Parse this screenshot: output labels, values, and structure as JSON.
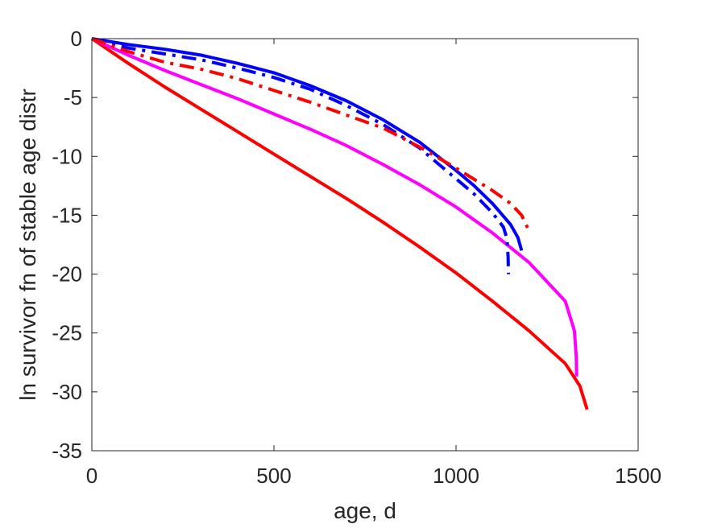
{
  "chart_data": {
    "type": "line",
    "title": "",
    "xlabel": "age, d",
    "ylabel": "ln survivor fn of stable age distr",
    "xlim": [
      0,
      1500
    ],
    "ylim": [
      -35,
      0
    ],
    "xticks": [
      0,
      500,
      1000,
      1500
    ],
    "yticks": [
      0,
      -5,
      -10,
      -15,
      -20,
      -25,
      -30,
      -35
    ],
    "xtick_labels": [
      "0",
      "500",
      "1000",
      "1500"
    ],
    "ytick_labels": [
      "0",
      "-5",
      "-10",
      "-15",
      "-20",
      "-25",
      "-30",
      "-35"
    ],
    "grid": false,
    "legend": "none",
    "series": [
      {
        "color": "#ff0000",
        "dash": "solid",
        "x": [
          0,
          100,
          200,
          300,
          400,
          500,
          600,
          700,
          800,
          900,
          1000,
          1100,
          1200,
          1300,
          1340,
          1360
        ],
        "y": [
          0,
          -2.1,
          -4.1,
          -6.0,
          -7.9,
          -9.8,
          -11.7,
          -13.6,
          -15.6,
          -17.7,
          -19.9,
          -22.3,
          -24.8,
          -27.6,
          -29.5,
          -31.5
        ]
      },
      {
        "color": "#ff00ff",
        "dash": "solid",
        "x": [
          0,
          100,
          200,
          300,
          400,
          500,
          600,
          700,
          800,
          900,
          1000,
          1100,
          1200,
          1300,
          1325,
          1330,
          1331
        ],
        "y": [
          0,
          -1.4,
          -2.7,
          -3.9,
          -5.1,
          -6.4,
          -7.7,
          -9.1,
          -10.7,
          -12.4,
          -14.3,
          -16.5,
          -19.0,
          -22.3,
          -24.8,
          -27.0,
          -28.7
        ]
      },
      {
        "color": "#0000ff",
        "dash": "solid",
        "x": [
          0,
          100,
          200,
          300,
          400,
          500,
          600,
          700,
          800,
          900,
          1000,
          1050,
          1100,
          1150,
          1170,
          1180
        ],
        "y": [
          0,
          -0.5,
          -0.9,
          -1.4,
          -2.1,
          -2.9,
          -4.0,
          -5.3,
          -6.9,
          -8.8,
          -11.2,
          -12.5,
          -14.0,
          -15.8,
          -16.9,
          -18.0
        ]
      },
      {
        "color": "#0000ff",
        "dash": "dashdot",
        "x": [
          0,
          100,
          200,
          300,
          400,
          500,
          600,
          700,
          800,
          900,
          1000,
          1050,
          1100,
          1130,
          1140,
          1143,
          1144
        ],
        "y": [
          0,
          -0.8,
          -1.3,
          -1.8,
          -2.5,
          -3.3,
          -4.3,
          -5.7,
          -7.3,
          -9.3,
          -11.9,
          -13.2,
          -14.8,
          -16.0,
          -17.0,
          -18.5,
          -20.0
        ]
      },
      {
        "color": "#ff0000",
        "dash": "dashdot",
        "x": [
          0,
          100,
          200,
          300,
          400,
          500,
          600,
          700,
          800,
          900,
          1000,
          1100,
          1150,
          1180,
          1200
        ],
        "y": [
          0,
          -1.1,
          -2.0,
          -2.6,
          -3.4,
          -4.4,
          -5.4,
          -6.5,
          -7.6,
          -9.2,
          -11.0,
          -12.9,
          -14.0,
          -15.0,
          -16.3
        ]
      }
    ]
  }
}
